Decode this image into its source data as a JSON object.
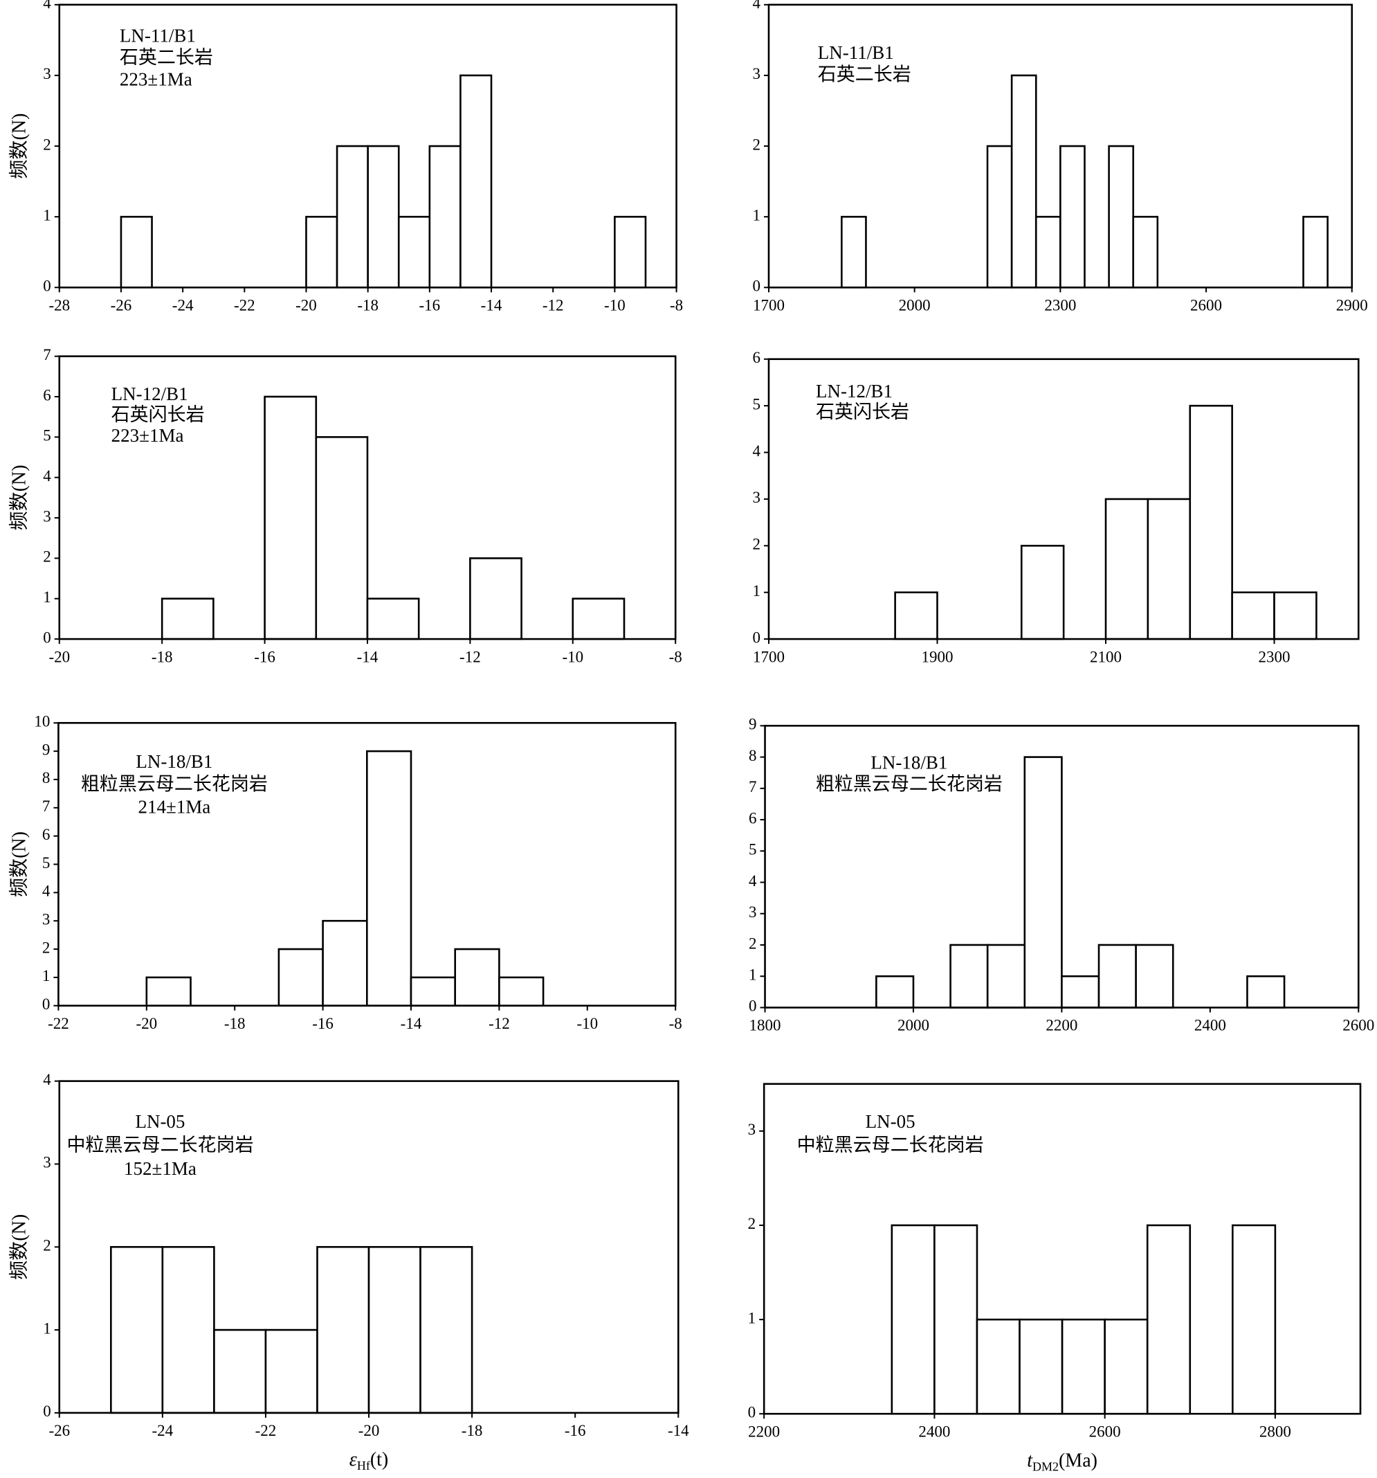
{
  "chart_data": [
    {
      "type": "histogram",
      "annotation": [
        "LN-11/B1",
        "石英二长岩",
        "223±1Ma"
      ],
      "ylabel": "频数(N)",
      "color": "#ffffff",
      "edgecolor": "#000000",
      "bins": [
        -26,
        -25,
        -24,
        -23,
        -22,
        -21,
        -20,
        -19,
        -18,
        -17,
        -16,
        -15,
        -14,
        -13,
        -12,
        -11,
        -10,
        -9
      ],
      "counts": [
        1,
        0,
        0,
        0,
        0,
        0,
        1,
        2,
        2,
        1,
        2,
        3,
        0,
        0,
        0,
        0,
        1
      ],
      "xlim": [
        -28,
        -8
      ],
      "xticks": [
        -28,
        -26,
        -24,
        -22,
        -20,
        -18,
        -16,
        -14,
        -12,
        -10,
        -8
      ],
      "ylim": [
        0,
        4
      ],
      "yticks": [
        0,
        1,
        2,
        3,
        4
      ]
    },
    {
      "type": "histogram",
      "annotation": [
        "LN-11/B1",
        "石英二长岩"
      ],
      "color": "#ffffff",
      "edgecolor": "#000000",
      "bins": [
        1850,
        1900,
        1950,
        2000,
        2050,
        2100,
        2150,
        2200,
        2250,
        2300,
        2350,
        2400,
        2450,
        2500,
        2550,
        2600,
        2650,
        2700,
        2750,
        2800,
        2850
      ],
      "counts": [
        1,
        0,
        0,
        0,
        0,
        0,
        2,
        3,
        1,
        2,
        0,
        2,
        1,
        0,
        0,
        0,
        0,
        0,
        0,
        1
      ],
      "xlim": [
        1700,
        2900
      ],
      "xticks": [
        1700,
        2000,
        2300,
        2600,
        2900
      ],
      "ylim": [
        0,
        4
      ],
      "yticks": [
        0,
        1,
        2,
        3,
        4
      ]
    },
    {
      "type": "histogram",
      "annotation": [
        "LN-12/B1",
        "石英闪长岩",
        "223±1Ma"
      ],
      "ylabel": "频数(N)",
      "color": "#ffffff",
      "edgecolor": "#000000",
      "bins": [
        -18,
        -17,
        -16,
        -15,
        -14,
        -13,
        -12,
        -11,
        -10,
        -9
      ],
      "counts": [
        1,
        0,
        6,
        5,
        1,
        0,
        2,
        0,
        1
      ],
      "xlim": [
        -20,
        -8
      ],
      "xticks": [
        -20,
        -18,
        -16,
        -14,
        -12,
        -10,
        -8
      ],
      "ylim": [
        0,
        7
      ],
      "yticks": [
        0,
        1,
        2,
        3,
        4,
        5,
        6,
        7
      ]
    },
    {
      "type": "histogram",
      "annotation": [
        "LN-12/B1",
        "石英闪长岩"
      ],
      "color": "#ffffff",
      "edgecolor": "#000000",
      "bins": [
        1850,
        1900,
        1950,
        2000,
        2050,
        2100,
        2150,
        2200,
        2250,
        2300,
        2350
      ],
      "counts": [
        1,
        0,
        0,
        2,
        0,
        3,
        3,
        5,
        1,
        1
      ],
      "xlim": [
        1700,
        2400
      ],
      "xticks": [
        1700,
        1900,
        2100,
        2300
      ],
      "ylim": [
        0,
        6
      ],
      "yticks": [
        0,
        1,
        2,
        3,
        4,
        5,
        6
      ]
    },
    {
      "type": "histogram",
      "annotation": [
        "LN-18/B1",
        "粗粒黑云母二长花岗岩",
        "214±1Ma"
      ],
      "ylabel": "频数(N)",
      "color": "#ffffff",
      "edgecolor": "#000000",
      "bins": [
        -20,
        -19,
        -18,
        -17,
        -16,
        -15,
        -14,
        -13,
        -12,
        -11
      ],
      "counts": [
        1,
        0,
        0,
        2,
        3,
        9,
        1,
        2,
        1
      ],
      "xlim": [
        -22,
        -8
      ],
      "xticks": [
        -22,
        -20,
        -18,
        -16,
        -14,
        -12,
        -10,
        -8
      ],
      "ylim": [
        0,
        10
      ],
      "yticks": [
        0,
        1,
        2,
        3,
        4,
        5,
        6,
        7,
        8,
        9,
        10
      ]
    },
    {
      "type": "histogram",
      "annotation": [
        "LN-18/B1",
        "粗粒黑云母二长花岗岩"
      ],
      "color": "#ffffff",
      "edgecolor": "#000000",
      "bins": [
        1950,
        2000,
        2050,
        2100,
        2150,
        2200,
        2250,
        2300,
        2350,
        2400,
        2450,
        2500
      ],
      "counts": [
        1,
        0,
        2,
        2,
        8,
        1,
        2,
        2,
        0,
        0,
        1
      ],
      "xlim": [
        1800,
        2600
      ],
      "xticks": [
        1800,
        2000,
        2200,
        2400,
        2600
      ],
      "ylim": [
        0,
        9
      ],
      "yticks": [
        0,
        1,
        2,
        3,
        4,
        5,
        6,
        7,
        8,
        9
      ]
    },
    {
      "type": "histogram",
      "annotation": [
        "LN-05",
        "中粒黑云母二长花岗岩",
        "152±1Ma"
      ],
      "ylabel": "频数(N)",
      "xlabel": [
        "ε",
        "Hf",
        "(t)"
      ],
      "color": "#ffffff",
      "edgecolor": "#000000",
      "bins": [
        -25,
        -24,
        -23,
        -22,
        -21,
        -20,
        -19,
        -18
      ],
      "counts": [
        2,
        2,
        1,
        1,
        2,
        2,
        2
      ],
      "xlim": [
        -26,
        -14
      ],
      "xticks": [
        -26,
        -24,
        -22,
        -20,
        -18,
        -16,
        -14
      ],
      "ylim": [
        0,
        4
      ],
      "yticks": [
        0,
        1,
        2,
        3,
        4
      ]
    },
    {
      "type": "histogram",
      "annotation": [
        "LN-05",
        "中粒黑云母二长花岗岩"
      ],
      "xlabel": [
        "t",
        "DM2",
        "(Ma)"
      ],
      "color": "#ffffff",
      "edgecolor": "#000000",
      "bins": [
        2350,
        2400,
        2450,
        2500,
        2550,
        2600,
        2650,
        2700,
        2750,
        2800
      ],
      "counts": [
        2,
        2,
        1,
        1,
        1,
        1,
        2,
        0,
        2
      ],
      "xlim": [
        2200,
        2900
      ],
      "xticks": [
        2200,
        2400,
        2600,
        2800
      ],
      "ylim": [
        0,
        3.5
      ],
      "yticks": [
        0,
        1,
        2,
        3
      ]
    }
  ]
}
